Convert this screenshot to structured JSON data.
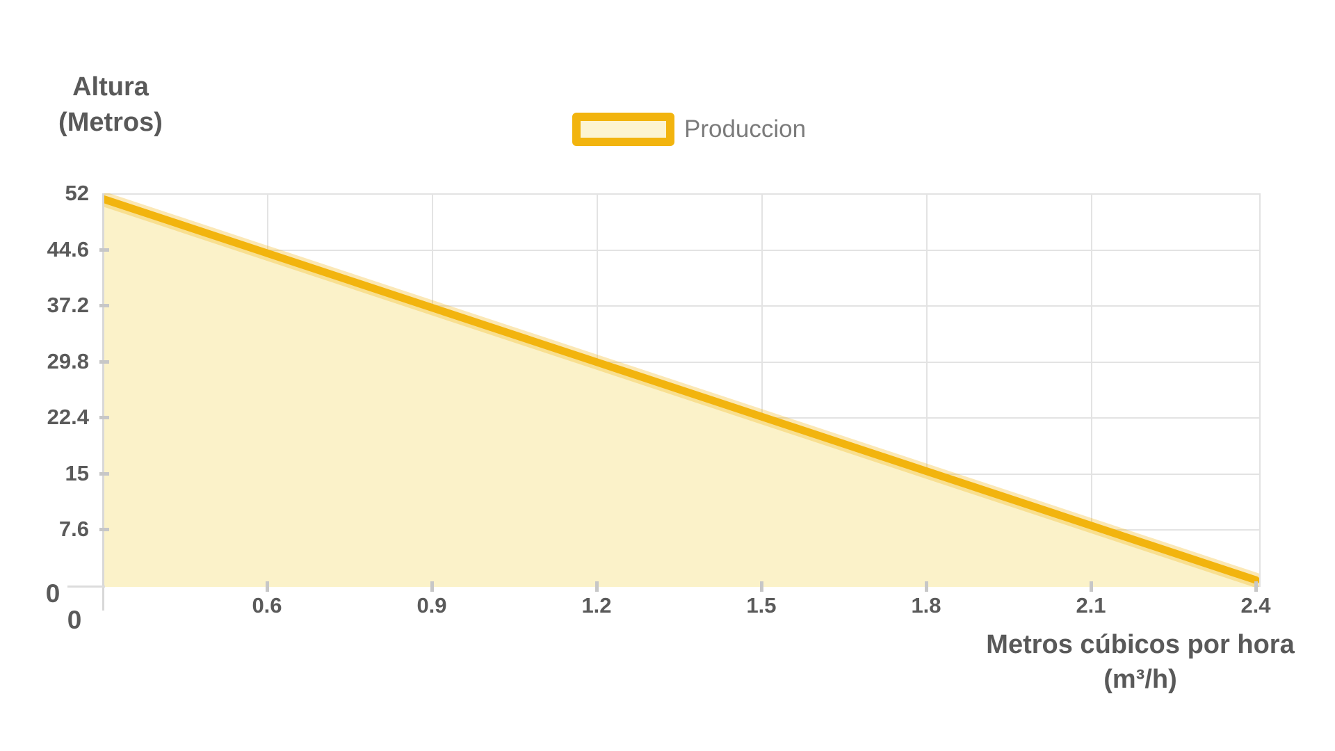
{
  "chart_data": {
    "type": "area",
    "title": "",
    "legend": {
      "label": "Produccion",
      "position": "top-center"
    },
    "ylabel_line1": "Altura",
    "ylabel_line2": "(Metros)",
    "xlabel_line1": "Metros cúbicos por hora",
    "xlabel_line2": "(m³/h)",
    "origin_y_label": "0",
    "origin_x_label": "0",
    "xlim": [
      0.304,
      2.406
    ],
    "ylim": [
      0,
      52
    ],
    "grid": true,
    "x_ticks": [
      0.6,
      0.9,
      1.2,
      1.5,
      1.8,
      2.1,
      2.4
    ],
    "x_tick_labels": [
      "0.6",
      "0.9",
      "1.2",
      "1.5",
      "1.8",
      "2.1",
      "2.4"
    ],
    "y_ticks": [
      52,
      44.6,
      37.2,
      29.8,
      22.4,
      15,
      7.6,
      0
    ],
    "y_tick_labels": [
      "52",
      "44.6",
      "37.2",
      "29.8",
      "22.4",
      "15",
      "7.6",
      "0"
    ],
    "series": [
      {
        "name": "Produccion",
        "x": [
          0.3,
          0.6,
          0.9,
          1.2,
          1.5,
          1.8,
          2.1,
          2.4
        ],
        "y": [
          51.3,
          44.1,
          36.9,
          29.7,
          22.5,
          15.3,
          8.1,
          0.9
        ]
      }
    ],
    "colors": {
      "line": "#F2B40E",
      "fill": "#FBF2C9",
      "legend_swatch_fill": "#FCF4D1",
      "grid": "#E3E3E3",
      "axis": "#D8D8D8",
      "tick": "#C7C7C7",
      "label_text": "#5A5A5A",
      "title_text": "#595959",
      "legend_text": "#7B7B7B"
    }
  }
}
